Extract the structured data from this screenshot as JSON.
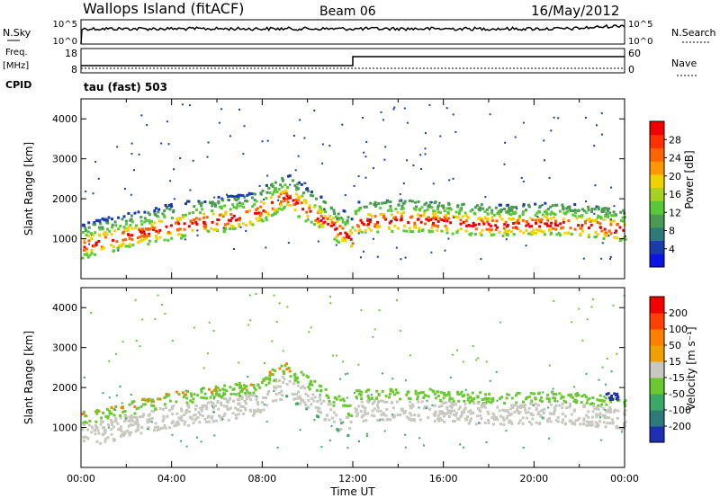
{
  "header": {
    "title": "Wallops Island (fitACF)",
    "beam": "Beam 06",
    "date": "16/May/2012"
  },
  "noise_panel": {
    "left_label": "N.Sky",
    "left_ticks": [
      "10^5",
      "10^0"
    ],
    "right_ticks": [
      "10^5",
      "10^0"
    ],
    "right_label": "N.Search"
  },
  "freq_panel": {
    "left_label_1": "Freq.",
    "left_label_2": "[MHz]",
    "left_ticks": [
      "18",
      "8"
    ],
    "right_ticks": [
      "60",
      "0"
    ],
    "right_label": "Nave",
    "cpid_label": "CPID",
    "cpid_value": "tau (fast) 503"
  },
  "chart_data": [
    {
      "type": "heatmap",
      "name": "power",
      "ylabel": "Slant Range [km]",
      "ylim": [
        0,
        4500
      ],
      "yticks": [
        "1000",
        "2000",
        "3000",
        "4000"
      ],
      "xlim": [
        0,
        24
      ],
      "colorbar": {
        "label": "Power [dB]",
        "ticks": [
          "4",
          "8",
          "12",
          "16",
          "20",
          "24",
          "28"
        ],
        "colors": [
          "#0a14e6",
          "#1a3ca8",
          "#2e7a78",
          "#4a9a52",
          "#58c836",
          "#a8d020",
          "#f0d200",
          "#ff9800",
          "#ff6400",
          "#ff3000",
          "#f00000"
        ]
      }
    },
    {
      "type": "heatmap",
      "name": "velocity",
      "ylabel": "Slant Range [km]",
      "ylim": [
        0,
        4500
      ],
      "yticks": [
        "1000",
        "2000",
        "3000",
        "4000"
      ],
      "xlim": [
        0,
        24
      ],
      "xlabel": "Time UT",
      "xticks": [
        "00:00",
        "04:00",
        "08:00",
        "12:00",
        "16:00",
        "20:00",
        "00:00"
      ],
      "colorbar": {
        "label": "Velocity [m s⁻¹]",
        "ticks": [
          "200",
          "100",
          "50",
          "15",
          "-15",
          "-50",
          "-100",
          "-200"
        ],
        "colors": [
          "#1e2fb4",
          "#2e7a78",
          "#3aa868",
          "#6cc832",
          "#c8c8c0",
          "#f0a000",
          "#ff8000",
          "#ff4000",
          "#f00000"
        ]
      }
    }
  ]
}
